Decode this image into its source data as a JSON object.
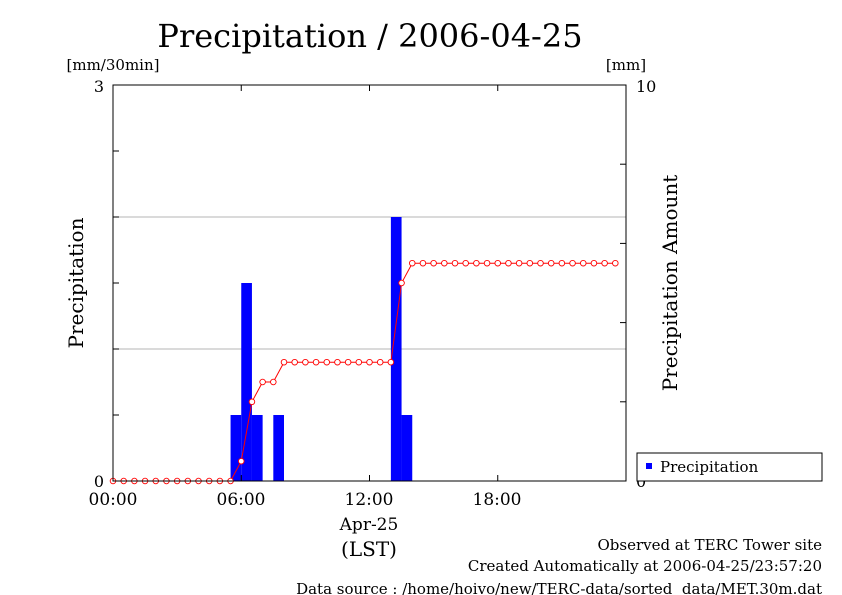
{
  "chart_data": {
    "type": "bar",
    "title": "Precipitation / 2006-04-25",
    "left_axis": {
      "label": "Precipitation",
      "unit": "[mm/30min]",
      "ylim": [
        0,
        3
      ],
      "tick_labels": [
        "0",
        "3"
      ]
    },
    "right_axis": {
      "label": "Precipitation Amount",
      "unit": "[mm]",
      "ylim": [
        0,
        10
      ],
      "tick_labels": [
        "0",
        "10"
      ]
    },
    "x_axis": {
      "date_label": "Apr-25",
      "zone_label": "(LST)",
      "tick_labels": [
        "00:00",
        "06:00",
        "12:00",
        "18:00"
      ],
      "xlim_hours": [
        0,
        24
      ]
    },
    "grid": "horizontal",
    "legend": {
      "placement": "bottom-right",
      "entries": [
        "Precipitation"
      ]
    },
    "colors": {
      "bars": "#0000ff",
      "cumulative_line": "#ff0000",
      "grid": "#b4b4b4"
    },
    "series": [
      {
        "name": "Precipitation",
        "kind": "bars",
        "axis": "left",
        "start_hours": [
          5.5,
          6.0,
          6.5,
          7.5,
          13.0,
          13.5
        ],
        "values": [
          0.5,
          1.5,
          0.5,
          0.5,
          2.0,
          0.5
        ]
      },
      {
        "kind": "line",
        "axis": "right",
        "x_hours": [
          0.0,
          0.5,
          1.0,
          1.5,
          2.0,
          2.5,
          3.0,
          3.5,
          4.0,
          4.5,
          5.0,
          5.5,
          6.0,
          6.5,
          7.0,
          7.5,
          8.0,
          8.5,
          9.0,
          9.5,
          10.0,
          10.5,
          11.0,
          11.5,
          12.0,
          12.5,
          13.0,
          13.5,
          14.0,
          14.5,
          15.0,
          15.5,
          16.0,
          16.5,
          17.0,
          17.5,
          18.0,
          18.5,
          19.0,
          19.5,
          20.0,
          20.5,
          21.0,
          21.5,
          22.0,
          22.5,
          23.0,
          23.5
        ],
        "values": [
          0,
          0,
          0,
          0,
          0,
          0,
          0,
          0,
          0,
          0,
          0,
          0,
          0.5,
          2.0,
          2.5,
          2.5,
          3.0,
          3.0,
          3.0,
          3.0,
          3.0,
          3.0,
          3.0,
          3.0,
          3.0,
          3.0,
          3.0,
          5.0,
          5.5,
          5.5,
          5.5,
          5.5,
          5.5,
          5.5,
          5.5,
          5.5,
          5.5,
          5.5,
          5.5,
          5.5,
          5.5,
          5.5,
          5.5,
          5.5,
          5.5,
          5.5,
          5.5,
          5.5
        ]
      }
    ]
  },
  "footer": {
    "line1": "Observed at TERC Tower site",
    "line2": "Created Automatically at 2006-04-25/23:57:20",
    "line3": "Data source : /home/hoivo/new/TERC-data/sorted  data/MET.30m.dat"
  }
}
